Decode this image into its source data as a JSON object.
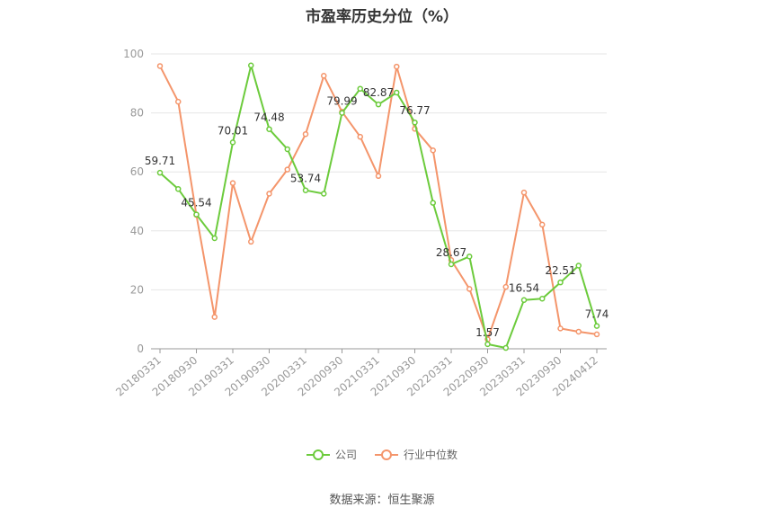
{
  "chart_data": {
    "type": "line",
    "title": "市盈率历史分位（%）",
    "source": "数据来源：恒生聚源",
    "ylim": [
      0,
      100
    ],
    "yticks": [
      0,
      20,
      40,
      60,
      80,
      100
    ],
    "grid": true,
    "legend_position": "bottom",
    "x_tick_labels": [
      "20180331",
      "20180930",
      "20190331",
      "20190930",
      "20200331",
      "20200930",
      "20210331",
      "20210930",
      "20220331",
      "20220930",
      "20230331",
      "20230930",
      "20240412"
    ],
    "x": [
      "20180331",
      "20180630",
      "20180930",
      "20181231",
      "20190331",
      "20190630",
      "20190930",
      "20191231",
      "20200331",
      "20200630",
      "20200930",
      "20201231",
      "20210331",
      "20210630",
      "20210930",
      "20211231",
      "20220331",
      "20220630",
      "20220930",
      "20221231",
      "20230331",
      "20230630",
      "20230930",
      "20231231",
      "20240412"
    ],
    "series": [
      {
        "name": "公司",
        "color": "#6ccb3c",
        "values": [
          59.71,
          54.2,
          45.54,
          37.5,
          70.01,
          96.1,
          74.48,
          67.7,
          53.74,
          52.6,
          79.99,
          88.2,
          82.87,
          86.9,
          76.77,
          49.5,
          28.67,
          31.3,
          1.57,
          0.3,
          16.54,
          17.0,
          22.51,
          28.2,
          7.74
        ],
        "labels": {
          "0": "59.71",
          "2": "45.54",
          "4": "70.01",
          "6": "74.48",
          "8": "53.74",
          "10": "79.99",
          "12": "82.87",
          "14": "76.77",
          "16": "28.67",
          "18": "1.57",
          "20": "16.54",
          "22": "22.51",
          "24": "7.74"
        }
      },
      {
        "name": "行业中位数",
        "color": "#f4956b",
        "values": [
          95.9,
          83.8,
          45.4,
          10.8,
          56.2,
          36.3,
          52.6,
          60.8,
          72.8,
          92.6,
          80.4,
          71.9,
          58.6,
          95.7,
          74.6,
          67.3,
          30.1,
          20.3,
          3.2,
          21.0,
          53.0,
          42.1,
          6.9,
          5.8,
          4.9
        ]
      }
    ]
  }
}
